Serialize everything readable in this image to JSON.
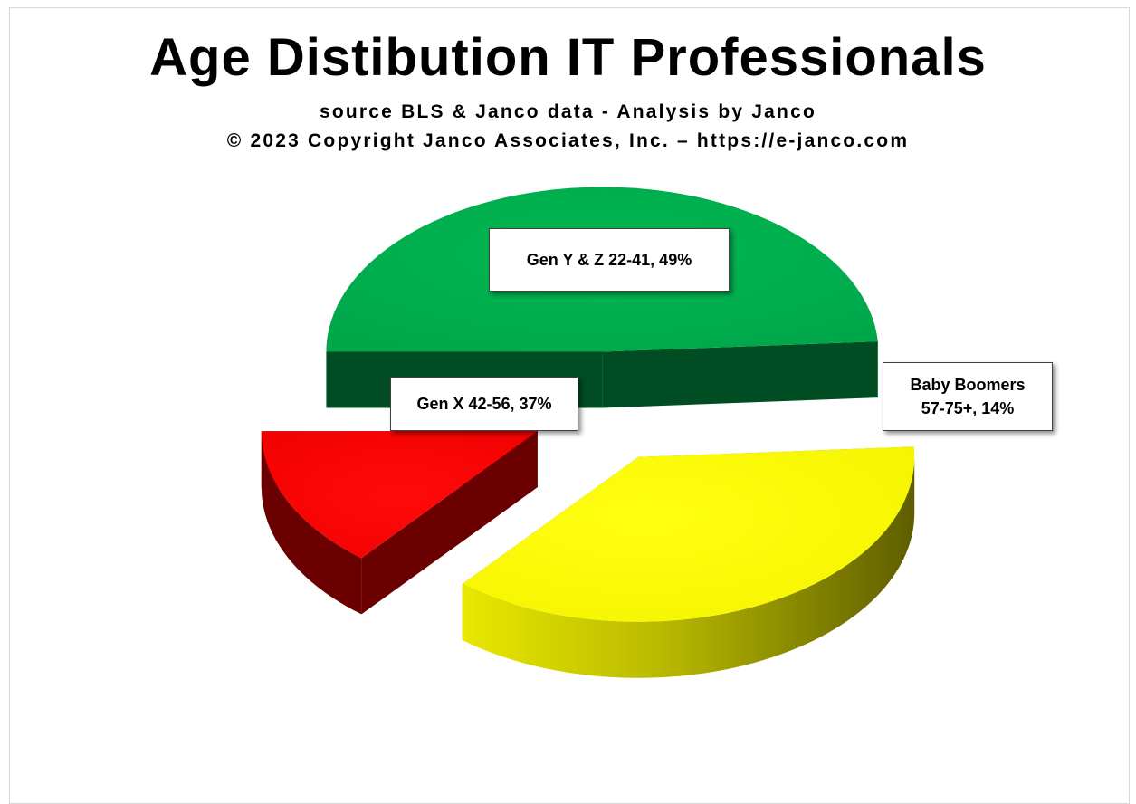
{
  "chart_data": {
    "type": "pie",
    "title": "Age Distibution IT Professionals",
    "subtitle": [
      "source BLS & Janco data - Analysis by Janco",
      "© 2023 Copyright Janco Associates, Inc. – https://e-janco.com"
    ],
    "slices": [
      {
        "label": "Gen Y & Z 22-41, 49%",
        "label_lines": [
          "Gen Y & Z 22-41, 49%"
        ],
        "value": 49,
        "color": "#00b050",
        "side_color": "#004d23"
      },
      {
        "label": "Gen X 42-56, 37%",
        "label_lines": [
          "Gen X 42-56, 37%"
        ],
        "value": 37,
        "color": "#ffff00",
        "side_color": "#8a8a00"
      },
      {
        "label": "Baby Boomers 57-75+, 14%",
        "label_lines": [
          "Baby Boomers",
          "57-75+, 14%"
        ],
        "value": 14,
        "color": "#ff0000",
        "side_color": "#6b0000"
      }
    ],
    "style": "3d-exploded",
    "legend": "none"
  }
}
